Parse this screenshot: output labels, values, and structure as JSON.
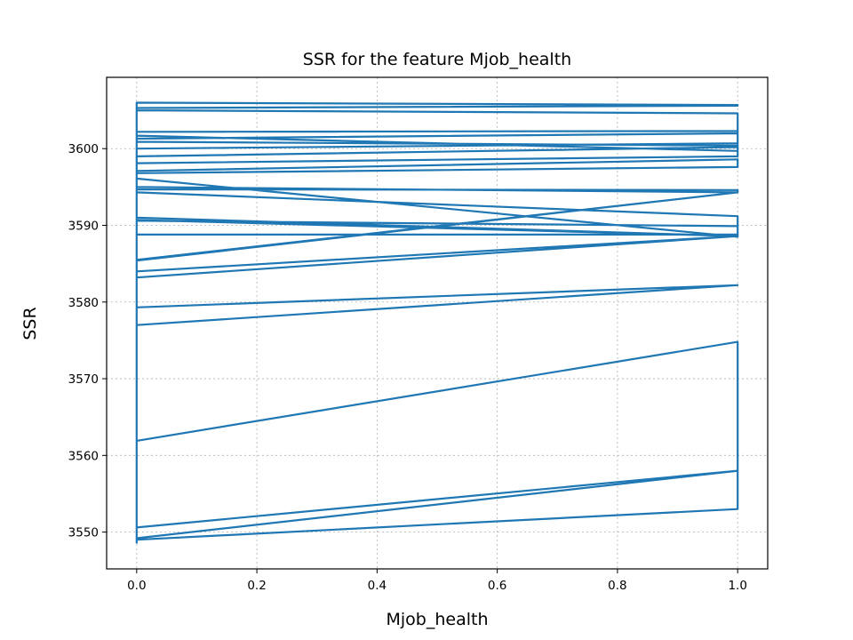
{
  "chart_data": {
    "type": "line",
    "title": "SSR for the feature Mjob_health",
    "xlabel": "Mjob_health",
    "ylabel": "SSR",
    "xlim": [
      -0.05,
      1.05
    ],
    "ylim": [
      3545.2,
      3609.3
    ],
    "xticks": [
      0.0,
      0.2,
      0.4,
      0.6,
      0.8,
      1.0
    ],
    "xtick_labels": [
      "0.0",
      "0.2",
      "0.4",
      "0.6",
      "0.8",
      "1.0"
    ],
    "yticks": [
      3550,
      3560,
      3570,
      3580,
      3590,
      3600
    ],
    "ytick_labels": [
      "3550",
      "3560",
      "3570",
      "3580",
      "3590",
      "3600"
    ],
    "grid": true,
    "series": [
      {
        "color": "#1f77b4",
        "x": [
          0,
          0,
          1,
          1,
          0,
          0,
          1,
          1,
          0,
          0,
          1,
          1,
          0,
          0,
          1,
          1,
          0,
          0,
          1,
          1,
          0,
          0,
          1,
          1,
          0,
          0,
          1,
          1,
          0,
          0,
          1,
          1,
          0,
          0,
          1,
          1,
          0,
          0,
          1,
          1,
          0,
          0,
          1,
          1,
          0,
          0,
          1,
          1,
          0,
          0,
          1,
          1,
          0,
          0,
          1,
          1,
          0,
          0,
          1,
          1,
          0,
          0
        ],
        "y": [
          3549.3,
          3549.0,
          3553.0,
          3558.0,
          3549.2,
          3550.6,
          3558.0,
          3574.8,
          3561.9,
          3577.0,
          3582.2,
          3582.2,
          3579.3,
          3583.2,
          3588.6,
          3588.6,
          3584.0,
          3585.5,
          3594.3,
          3594.3,
          3585.4,
          3588.8,
          3588.8,
          3588.6,
          3590.7,
          3591.0,
          3588.6,
          3591.2,
          3594.3,
          3596.1,
          3588.5,
          3589.9,
          3590.6,
          3594.7,
          3594.6,
          3594.3,
          3595.0,
          3596.8,
          3597.6,
          3598.6,
          3597.1,
          3598.1,
          3599.0,
          3600.2,
          3599.0,
          3600.0,
          3600.7,
          3600.4,
          3600.9,
          3602.2,
          3602.3,
          3602.0,
          3601.3,
          3601.7,
          3599.7,
          3604.6,
          3605.0,
          3605.3,
          3605.6,
          3605.7,
          3606.0,
          3548.5
        ]
      }
    ]
  }
}
